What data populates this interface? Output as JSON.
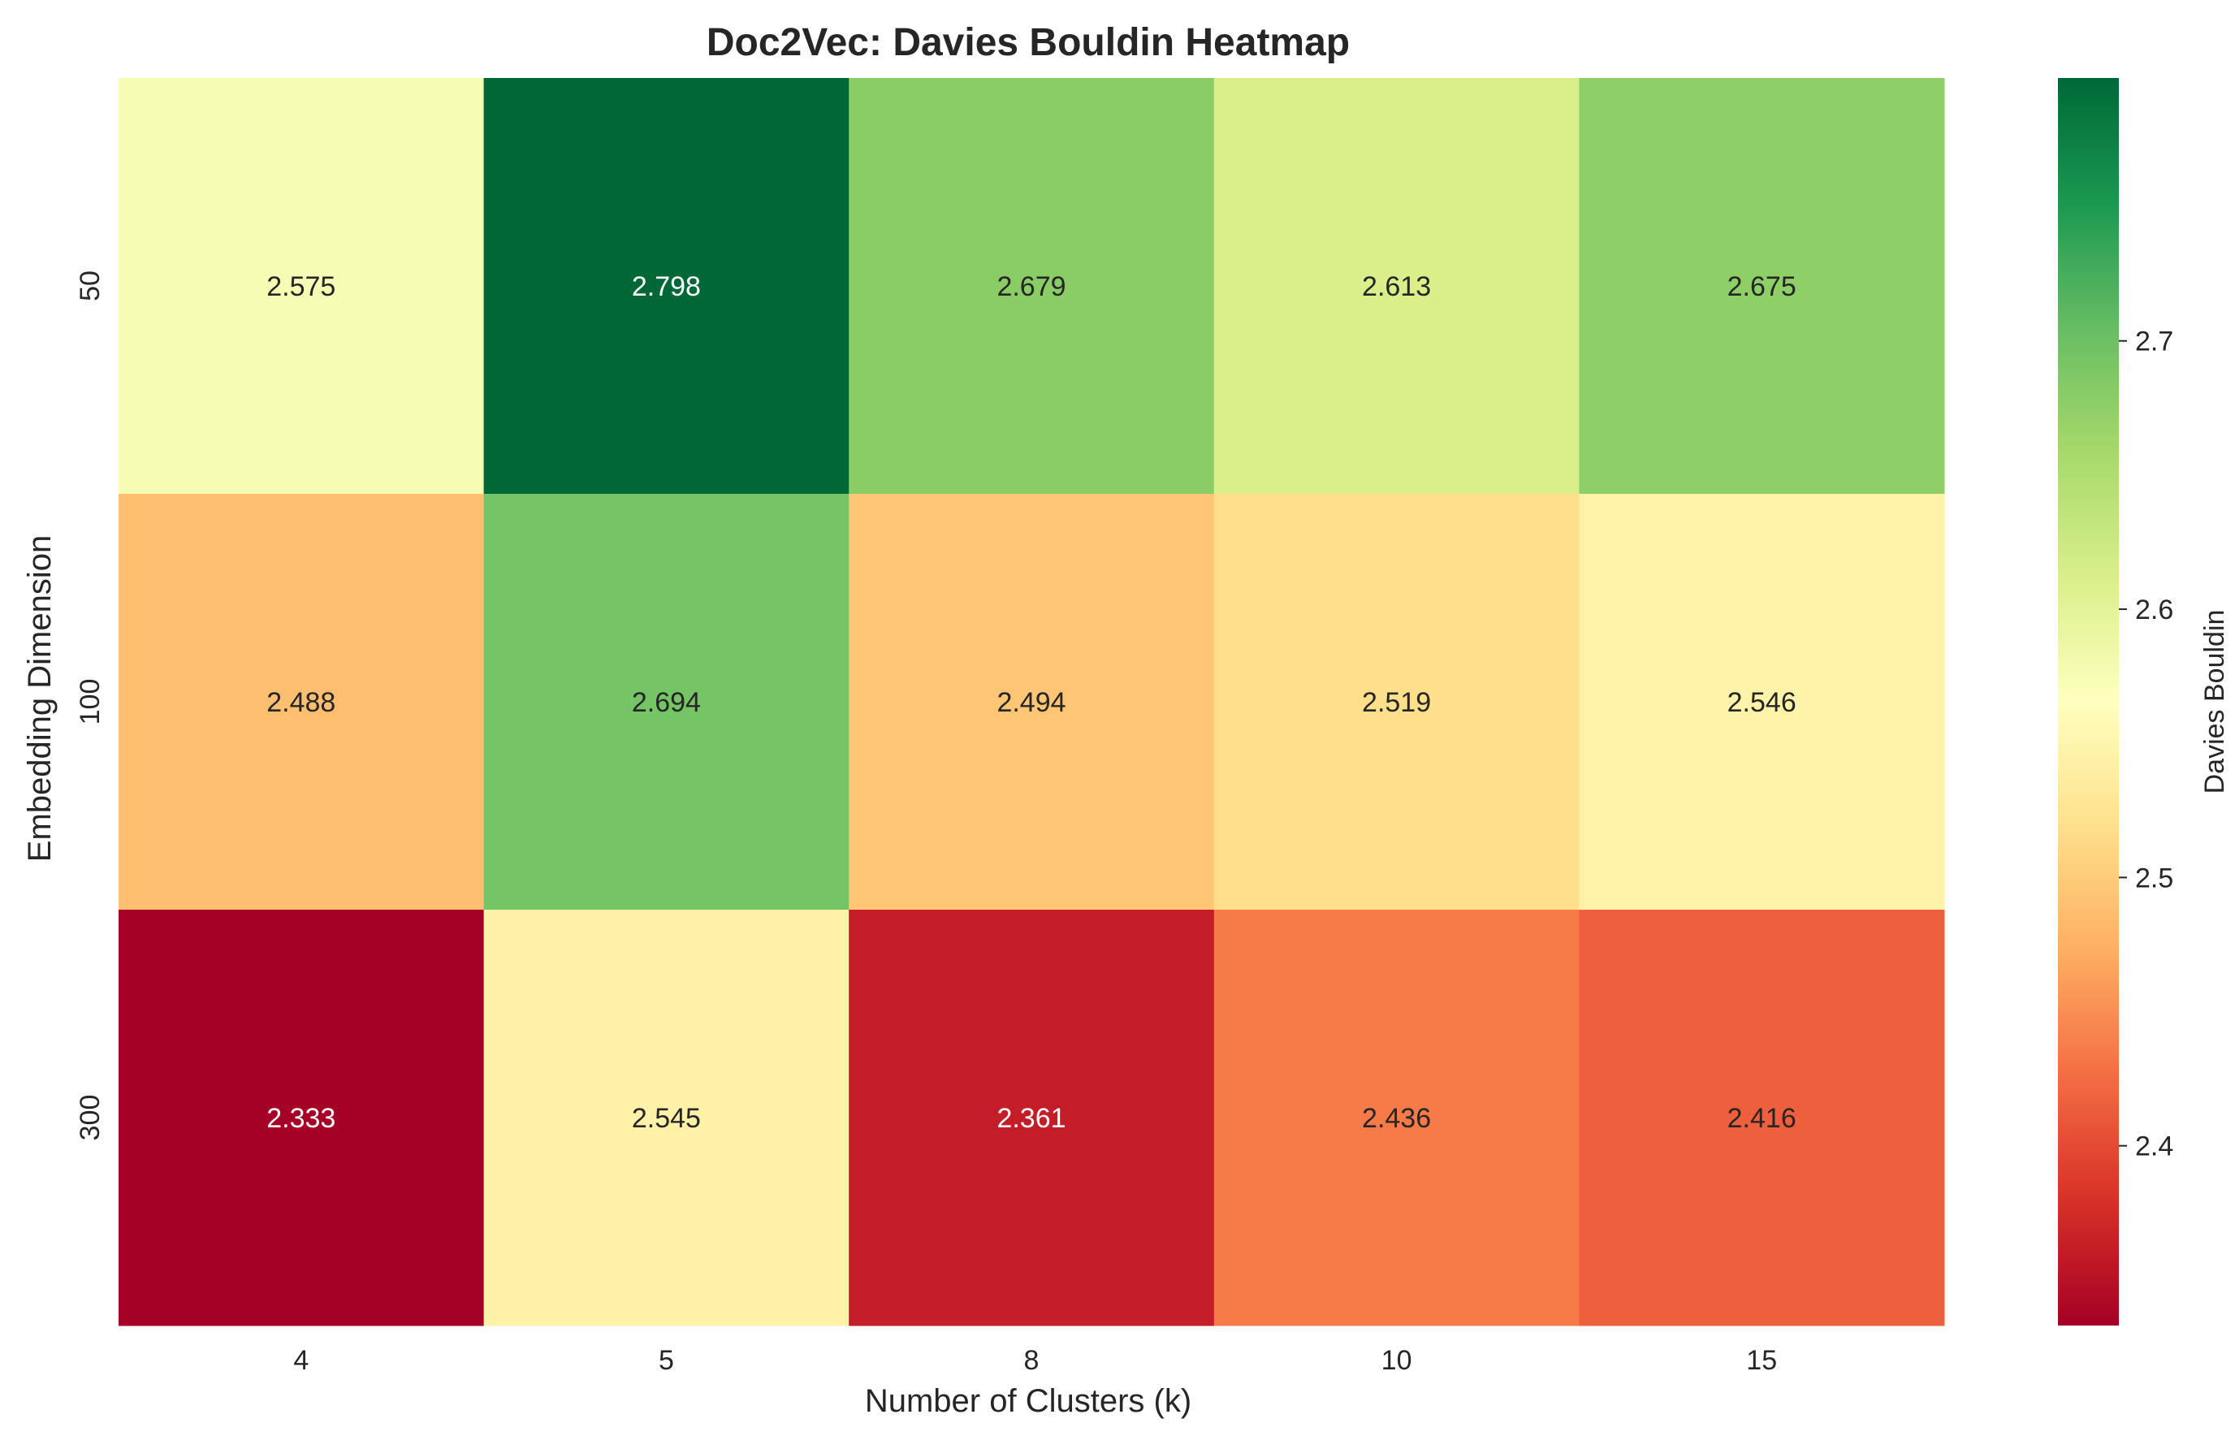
{
  "chart_data": {
    "type": "heatmap",
    "title": "Doc2Vec: Davies Bouldin Heatmap",
    "xlabel": "Number of Clusters (k)",
    "ylabel": "Embedding Dimension",
    "x_categories": [
      "4",
      "5",
      "8",
      "10",
      "15"
    ],
    "y_categories": [
      "50",
      "100",
      "300"
    ],
    "values": [
      [
        2.575,
        2.798,
        2.679,
        2.613,
        2.675
      ],
      [
        2.488,
        2.694,
        2.494,
        2.519,
        2.546
      ],
      [
        2.333,
        2.545,
        2.361,
        2.436,
        2.416
      ]
    ],
    "cell_labels": [
      [
        "2.575",
        "2.798",
        "2.679",
        "2.613",
        "2.675"
      ],
      [
        "2.488",
        "2.694",
        "2.494",
        "2.519",
        "2.546"
      ],
      [
        "2.333",
        "2.545",
        "2.361",
        "2.436",
        "2.416"
      ]
    ],
    "colorbar": {
      "label": "Davies Bouldin",
      "range": [
        2.333,
        2.798
      ],
      "ticks": [
        2.4,
        2.5,
        2.6,
        2.7
      ],
      "tick_labels": [
        "2.4",
        "2.5",
        "2.6",
        "2.7"
      ]
    },
    "colormap": "RdYlGn",
    "colormap_stops": [
      "#a50026",
      "#d73027",
      "#f46d43",
      "#fdae61",
      "#fee08b",
      "#ffffbf",
      "#d9ef8b",
      "#a6d96a",
      "#66bd63",
      "#1a9850",
      "#006837"
    ],
    "grid": false
  }
}
